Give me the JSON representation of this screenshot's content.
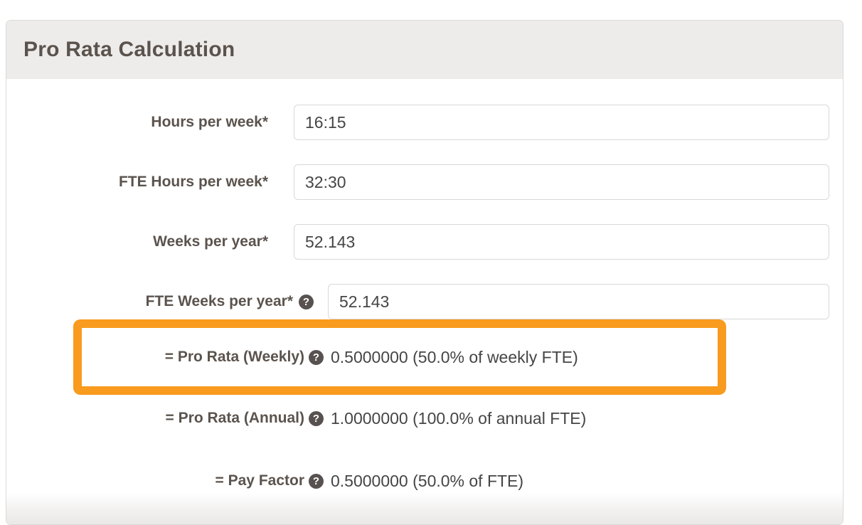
{
  "panel": {
    "title": "Pro Rata Calculation"
  },
  "form": {
    "rows": [
      {
        "label": "Hours per week*",
        "value": "16:15"
      },
      {
        "label": "FTE Hours per week*",
        "value": "32:30"
      },
      {
        "label": "Weeks per year*",
        "value": "52.143"
      },
      {
        "label": "FTE Weeks per year*",
        "value": "52.143"
      },
      {
        "label": "= Pro Rata (Weekly)",
        "value": "0.5000000 (50.0% of weekly FTE)"
      },
      {
        "label": "= Pro Rata (Annual)",
        "value": "1.0000000 (100.0% of annual FTE)"
      },
      {
        "label": "= Pay Factor",
        "value": "0.5000000 (50.0% of FTE)"
      }
    ]
  },
  "icons": {
    "help_glyph": "?"
  },
  "colors": {
    "highlight_border": "#f89b1e",
    "header_bg": "#eeecea",
    "label_text": "#5b534d",
    "value_text": "#454545",
    "help_icon_bg": "#575150",
    "input_border": "#d8d8d8"
  }
}
